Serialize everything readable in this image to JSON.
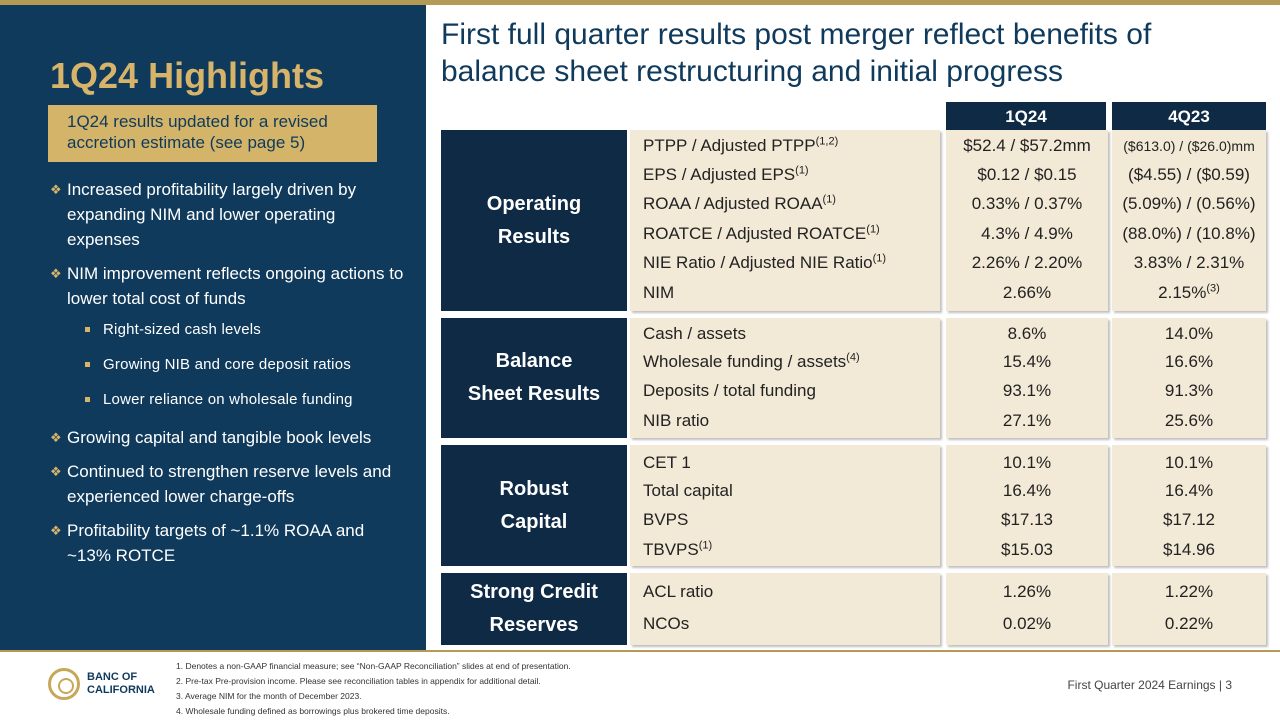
{
  "left": {
    "heading": "1Q24 Highlights",
    "note": "1Q24 results updated for a revised accretion estimate (see page 5)",
    "bullets": [
      "Increased profitability largely driven by expanding NIM and lower operating expenses",
      "NIM improvement reflects ongoing actions to lower total cost of funds",
      "Growing capital and tangible book levels",
      "Continued to strengthen reserve levels and experienced lower charge-offs",
      "Profitability targets of ~1.1% ROAA and ~13% ROTCE"
    ],
    "subbullets": [
      "Right-sized cash levels",
      "Growing NIB and core deposit ratios",
      "Lower reliance on wholesale funding"
    ]
  },
  "title": "First full quarter results post merger reflect benefits of balance sheet restructuring and initial progress",
  "columns": {
    "q1": "1Q24",
    "q4": "4Q23"
  },
  "groups": [
    {
      "label_lines": [
        "Operating",
        "Results"
      ],
      "metrics": [
        "PTPP / Adjusted PTPP",
        "EPS / Adjusted EPS",
        "ROAA / Adjusted ROAA",
        "ROATCE / Adjusted ROATCE",
        "NIE Ratio / Adjusted NIE Ratio",
        "NIM"
      ],
      "sups": [
        "(1,2)",
        "(1)",
        "(1)",
        "(1)",
        "(1)",
        ""
      ],
      "q1": [
        "$52.4 / $57.2mm",
        "$0.12 / $0.15",
        "0.33% / 0.37%",
        "4.3% / 4.9%",
        "2.26% / 2.20%",
        "2.66%"
      ],
      "q4": [
        "($613.0) / ($26.0)mm",
        "($4.55) / ($0.59)",
        "(5.09%) / (0.56%)",
        "(88.0%) / (10.8%)",
        "3.83% / 2.31%",
        "2.15%"
      ],
      "q4_sups": [
        "",
        "",
        "",
        "",
        "",
        "(3)"
      ]
    },
    {
      "label_lines": [
        "Balance",
        "Sheet Results"
      ],
      "metrics": [
        "Cash / assets",
        "Wholesale funding / assets",
        "Deposits / total funding",
        "NIB ratio"
      ],
      "sups": [
        "",
        "(4)",
        "",
        ""
      ],
      "q1": [
        "8.6%",
        "15.4%",
        "93.1%",
        "27.1%"
      ],
      "q4": [
        "14.0%",
        "16.6%",
        "91.3%",
        "25.6%"
      ],
      "q4_sups": [
        "",
        "",
        "",
        ""
      ]
    },
    {
      "label_lines": [
        "Robust",
        "Capital"
      ],
      "metrics": [
        "CET 1",
        "Total capital",
        "BVPS",
        "TBVPS"
      ],
      "sups": [
        "",
        "",
        "",
        "(1)"
      ],
      "q1": [
        "10.1%",
        "16.4%",
        "$17.13",
        "$15.03"
      ],
      "q4": [
        "10.1%",
        "16.4%",
        "$17.12",
        "$14.96"
      ],
      "q4_sups": [
        "",
        "",
        "",
        ""
      ]
    },
    {
      "label_lines": [
        "Strong Credit",
        "Reserves"
      ],
      "metrics": [
        "ACL ratio",
        "NCOs"
      ],
      "sups": [
        "",
        ""
      ],
      "q1": [
        "1.26%",
        "0.02%"
      ],
      "q4": [
        "1.22%",
        "0.22%"
      ],
      "q4_sups": [
        "",
        ""
      ]
    }
  ],
  "footer": {
    "logo_line1": "BANC OF",
    "logo_line2": "CALIFORNIA",
    "footnotes": [
      "1.  Denotes a non-GAAP financial measure; see “Non-GAAP Reconciliation” slides at end of presentation.",
      "2.  Pre-tax Pre-provision income. Please see reconciliation tables in appendix for additional detail.",
      "3.  Average NIM for the month of December 2023.",
      "4.  Wholesale funding defined as borrowings plus brokered time deposits."
    ],
    "page_label": "First Quarter 2024 Earnings |  3"
  },
  "colors": {
    "navy": "#0f3a5c",
    "dark_navy": "#0f2a45",
    "gold": "#d3b468",
    "cell_bg": "#f2e9d6"
  }
}
